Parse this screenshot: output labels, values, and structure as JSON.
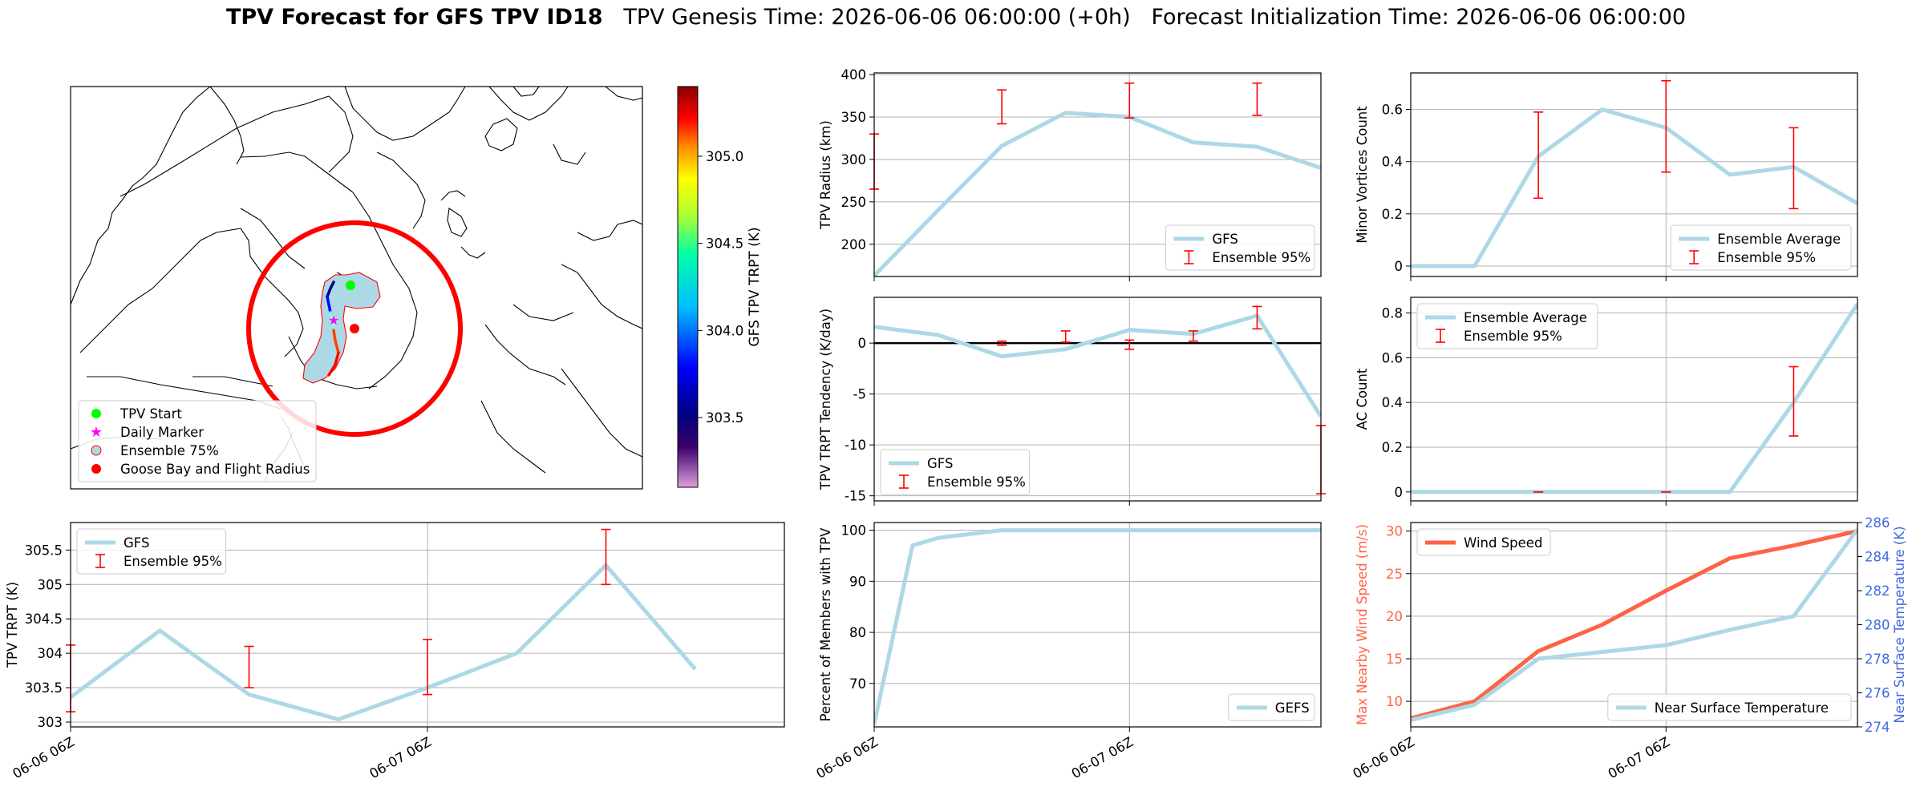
{
  "title": {
    "main": "TPV Forecast for GFS TPV ID18",
    "genesis": "TPV Genesis Time: 2026-06-06 06:00:00 (+0h)",
    "init": "Forecast Initialization Time: 2026-06-06 06:00:00"
  },
  "colors": {
    "gfs_line": "#add8e6",
    "error_bar": "#ff0000",
    "wind_line": "#ff6347",
    "temp_axis": "#4169e1",
    "flight_radius": "#ff0000",
    "tpv_start": "#00ff00",
    "daily_marker": "#ff00ff"
  },
  "map": {
    "colorbar": {
      "label": "GFS TPV TRPT (K)",
      "ticks": [
        "303.5",
        "304.0",
        "304.5",
        "305.0"
      ],
      "range": [
        303.1,
        305.4
      ]
    },
    "legend": {
      "items": [
        {
          "label": "TPV Start",
          "marker": "circle",
          "color": "#00ff00"
        },
        {
          "label": "Daily Marker",
          "marker": "star",
          "color": "#ff00ff"
        },
        {
          "label": "Ensemble 75%",
          "marker": "circle-light",
          "color": "#add8e6"
        },
        {
          "label": "Goose Bay and Flight Radius",
          "marker": "circle",
          "color": "#ff0000"
        }
      ]
    }
  },
  "x_ticks": [
    "06-06 06Z",
    "06-07 06Z"
  ],
  "chart_data": [
    {
      "id": "radius",
      "type": "line",
      "ylabel": "TPV Radius (km)",
      "ylim": [
        162,
        402
      ],
      "yticks": [
        200,
        250,
        300,
        350,
        400
      ],
      "grid": true,
      "legend_position": "lower-right",
      "series": [
        {
          "name": "GFS",
          "x": [
            0,
            6,
            12,
            18,
            24,
            30,
            36,
            42
          ],
          "y": [
            163,
            240,
            316,
            355,
            350,
            320,
            315,
            290
          ]
        }
      ],
      "errorbars": {
        "name": "Ensemble 95%",
        "items": [
          {
            "x": 0,
            "low": 265,
            "high": 330
          },
          {
            "x": 12,
            "low": 342,
            "high": 382
          },
          {
            "x": 24,
            "low": 349,
            "high": 390
          },
          {
            "x": 36,
            "low": 352,
            "high": 390
          }
        ]
      }
    },
    {
      "id": "minor_vortices",
      "type": "line",
      "ylabel": "Minor Vortices Count",
      "ylim": [
        -0.04,
        0.74
      ],
      "yticks": [
        0.0,
        0.2,
        0.4,
        0.6
      ],
      "grid": true,
      "legend_position": "lower-right",
      "series": [
        {
          "name": "Ensemble Average",
          "x": [
            0,
            6,
            12,
            18,
            24,
            30,
            36,
            42
          ],
          "y": [
            0,
            0,
            0.42,
            0.6,
            0.53,
            0.35,
            0.38,
            0.24
          ]
        }
      ],
      "errorbars": {
        "name": "Ensemble 95%",
        "items": [
          {
            "x": 12,
            "low": 0.26,
            "high": 0.59
          },
          {
            "x": 24,
            "low": 0.36,
            "high": 0.71
          },
          {
            "x": 36,
            "low": 0.22,
            "high": 0.53
          }
        ]
      }
    },
    {
      "id": "tendency",
      "type": "line",
      "ylabel": "TPV TRPT Tendency (K/day)",
      "ylim": [
        -15.5,
        4.5
      ],
      "yticks": [
        -15,
        -10,
        -5,
        0
      ],
      "grid": true,
      "zero_line": true,
      "legend_position": "lower-left",
      "series": [
        {
          "name": "GFS",
          "x": [
            0,
            6,
            12,
            18,
            24,
            30,
            36,
            42
          ],
          "y": [
            1.6,
            0.8,
            -1.3,
            -0.6,
            1.3,
            0.9,
            2.7,
            -7.2
          ]
        }
      ],
      "errorbars": {
        "name": "Ensemble 95%",
        "items": [
          {
            "x": 12,
            "low": -0.2,
            "high": 0.2
          },
          {
            "x": 18,
            "low": 0.1,
            "high": 1.2
          },
          {
            "x": 24,
            "low": -0.6,
            "high": 0.3
          },
          {
            "x": 30,
            "low": 0.2,
            "high": 1.2
          },
          {
            "x": 36,
            "low": 1.4,
            "high": 3.6
          },
          {
            "x": 42,
            "low": -14.8,
            "high": -8.1
          }
        ]
      }
    },
    {
      "id": "ac_count",
      "type": "line",
      "ylabel": "AC Count",
      "ylim": [
        -0.04,
        0.87
      ],
      "yticks": [
        0.0,
        0.2,
        0.4,
        0.6,
        0.8
      ],
      "grid": true,
      "legend_position": "upper-left",
      "series": [
        {
          "name": "Ensemble Average",
          "x": [
            0,
            6,
            12,
            18,
            24,
            30,
            36,
            42
          ],
          "y": [
            0,
            0,
            0,
            0,
            0,
            0,
            0.4,
            0.84
          ]
        }
      ],
      "errorbars": {
        "name": "Ensemble 95%",
        "items": [
          {
            "x": 12,
            "low": 0,
            "high": 0
          },
          {
            "x": 24,
            "low": 0,
            "high": 0
          },
          {
            "x": 36,
            "low": 0.25,
            "high": 0.56
          }
        ]
      }
    },
    {
      "id": "trpt",
      "type": "line",
      "ylabel": "TPV TRPT (K)",
      "ylim": [
        302.93,
        305.9
      ],
      "yticks": [
        303.0,
        303.5,
        304.0,
        304.5,
        305.0,
        305.5
      ],
      "grid": true,
      "legend_position": "upper-left",
      "series": [
        {
          "name": "GFS",
          "x": [
            0,
            6,
            12,
            18,
            24,
            30,
            36,
            42
          ],
          "y": [
            303.36,
            304.33,
            303.4,
            303.04,
            303.5,
            304.0,
            305.28,
            303.77
          ]
        }
      ],
      "errorbars": {
        "name": "Ensemble 95%",
        "items": [
          {
            "x": 0,
            "low": 303.15,
            "high": 304.12
          },
          {
            "x": 12,
            "low": 303.5,
            "high": 304.1
          },
          {
            "x": 24,
            "low": 303.4,
            "high": 304.2
          },
          {
            "x": 36,
            "low": 305.0,
            "high": 305.8
          }
        ]
      }
    },
    {
      "id": "percent",
      "type": "line",
      "ylabel": "Percent of Members with TPV",
      "ylim": [
        61.5,
        101.5
      ],
      "yticks": [
        70,
        80,
        90,
        100
      ],
      "grid": true,
      "legend_position": "lower-right",
      "series": [
        {
          "name": "GEFS",
          "x": [
            0,
            3.6,
            6,
            12,
            18,
            24,
            30,
            36,
            42
          ],
          "y": [
            62,
            97,
            98.5,
            100,
            100,
            100,
            100,
            100,
            100
          ]
        }
      ]
    },
    {
      "id": "wind_temp",
      "type": "line",
      "ylabel": "Max Nearby Wind Speed (m/s)",
      "ylim": [
        7.0,
        31.0
      ],
      "yticks": [
        10,
        15,
        20,
        25,
        30
      ],
      "y2label": "Near Surface Temperature (K)",
      "y2lim": [
        274.0,
        286.0
      ],
      "y2ticks": [
        274,
        276,
        278,
        280,
        282,
        284,
        286
      ],
      "grid": true,
      "series": [
        {
          "name": "Wind Speed",
          "axis": "left",
          "legend_position": "upper-left",
          "x": [
            0,
            6,
            12,
            18,
            24,
            30,
            36,
            42
          ],
          "y": [
            8,
            10,
            15.9,
            19,
            23,
            26.8,
            28.3,
            30
          ]
        },
        {
          "name": "Near Surface Temperature",
          "axis": "right",
          "legend_position": "lower-right",
          "x": [
            0,
            6,
            12,
            18,
            24,
            30,
            36,
            42
          ],
          "y": [
            274.4,
            275.3,
            278.0,
            278.4,
            278.8,
            279.7,
            280.5,
            285.6
          ]
        }
      ]
    }
  ]
}
